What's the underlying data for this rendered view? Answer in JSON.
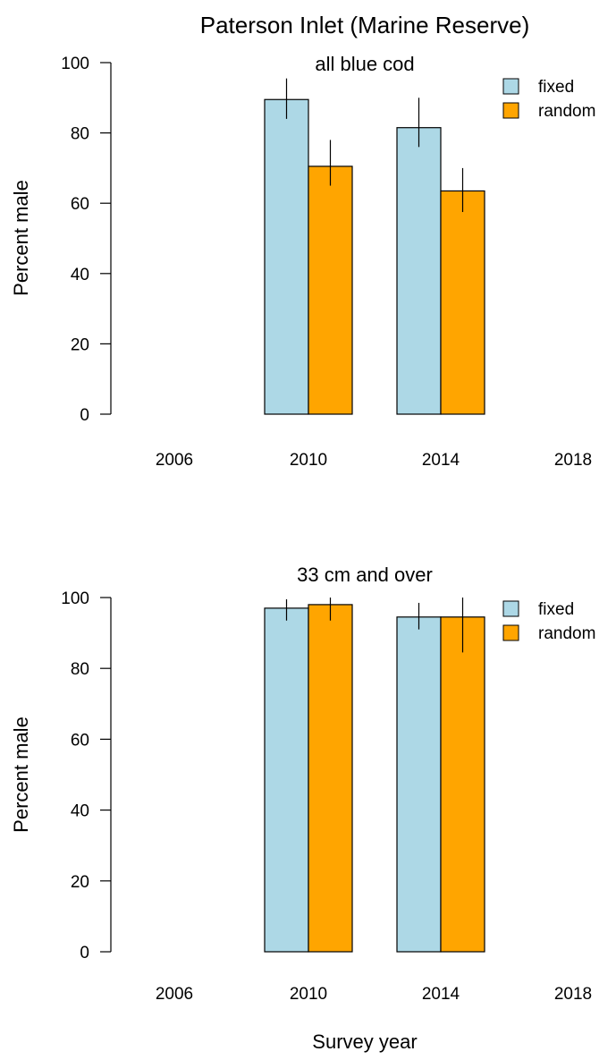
{
  "title": "Paterson Inlet (Marine Reserve)",
  "xlabel": "Survey year",
  "colors": {
    "fixed": "#add8e6",
    "random": "#ffa500"
  },
  "chart_data": [
    {
      "type": "bar",
      "title": "all blue cod",
      "ylabel": "Percent male",
      "ylim": [
        0,
        100
      ],
      "yticks": [
        0,
        20,
        40,
        60,
        80,
        100
      ],
      "categories": [
        "2006",
        "2010",
        "2014",
        "2018"
      ],
      "legend_position": "top-right",
      "series": [
        {
          "name": "fixed",
          "values": [
            null,
            89.5,
            81.5,
            null
          ],
          "err_low": [
            null,
            84,
            76,
            null
          ],
          "err_high": [
            null,
            95.5,
            90,
            null
          ]
        },
        {
          "name": "random",
          "values": [
            null,
            70.5,
            63.5,
            null
          ],
          "err_low": [
            null,
            65,
            57.5,
            null
          ],
          "err_high": [
            null,
            78,
            70,
            null
          ]
        }
      ]
    },
    {
      "type": "bar",
      "title": "33 cm and over",
      "ylabel": "Percent male",
      "ylim": [
        0,
        100
      ],
      "yticks": [
        0,
        20,
        40,
        60,
        80,
        100
      ],
      "categories": [
        "2006",
        "2010",
        "2014",
        "2018"
      ],
      "legend_position": "top-right",
      "series": [
        {
          "name": "fixed",
          "values": [
            null,
            97,
            94.5,
            null
          ],
          "err_low": [
            null,
            93.5,
            91,
            null
          ],
          "err_high": [
            null,
            99.5,
            98.5,
            null
          ]
        },
        {
          "name": "random",
          "values": [
            null,
            98,
            94.5,
            null
          ],
          "err_low": [
            null,
            93.5,
            84.5,
            null
          ],
          "err_high": [
            null,
            100,
            100,
            null
          ]
        }
      ]
    }
  ]
}
